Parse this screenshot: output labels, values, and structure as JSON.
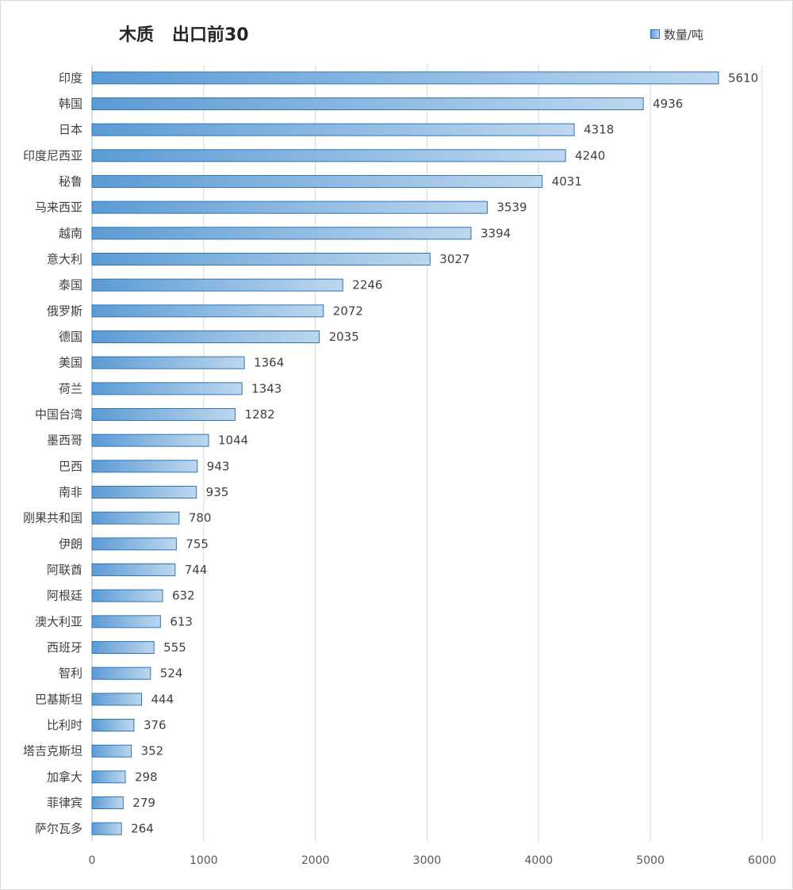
{
  "chart_data": {
    "type": "bar",
    "orientation": "horizontal",
    "title": "木质   出口前30",
    "legend": {
      "label": "数量/吨",
      "position": "top-right"
    },
    "categories": [
      "印度",
      "韩国",
      "日本",
      "印度尼西亚",
      "秘鲁",
      "马来西亚",
      "越南",
      "意大利",
      "泰国",
      "俄罗斯",
      "德国",
      "美国",
      "荷兰",
      "中国台湾",
      "墨西哥",
      "巴西",
      "南非",
      "刚果共和国",
      "伊朗",
      "阿联酋",
      "阿根廷",
      "澳大利亚",
      "西班牙",
      "智利",
      "巴基斯坦",
      "比利时",
      "塔吉克斯坦",
      "加拿大",
      "菲律宾",
      "萨尔瓦多"
    ],
    "series": [
      {
        "name": "数量/吨",
        "values": [
          5610,
          4936,
          4318,
          4240,
          4031,
          3539,
          3394,
          3027,
          2246,
          2072,
          2035,
          1364,
          1343,
          1282,
          1044,
          943,
          935,
          780,
          755,
          744,
          632,
          613,
          555,
          524,
          444,
          376,
          352,
          298,
          279,
          264
        ]
      }
    ],
    "xlim": [
      0,
      6000
    ],
    "xticks": [
      "0",
      "1000",
      "2000",
      "3000",
      "4000",
      "5000",
      "6000"
    ],
    "grid": true,
    "data_labels": true,
    "colors": {
      "bar_start": "#5b9bd5",
      "bar_end": "#bdd7ee",
      "bar_border": "#2e75b6",
      "grid": "#d9d9d9",
      "axis": "#bfbfbf"
    }
  }
}
